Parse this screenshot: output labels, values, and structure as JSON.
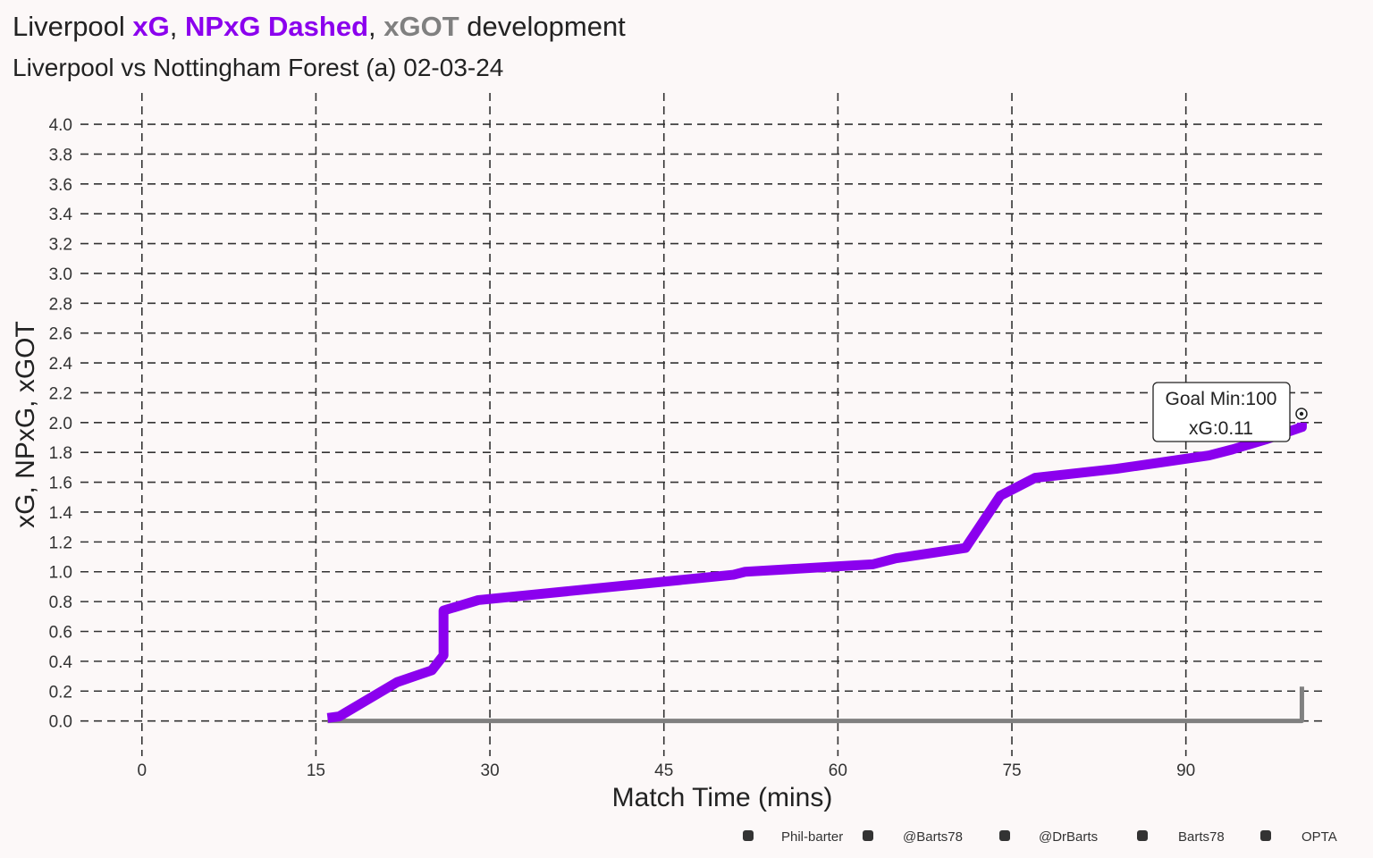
{
  "chart_data": {
    "type": "line",
    "title_parts": [
      {
        "text": "Liverpool ",
        "color": "#222222",
        "bold": false
      },
      {
        "text": "xG",
        "color": "#8b00ee",
        "bold": true
      },
      {
        "text": ", ",
        "color": "#222222",
        "bold": false
      },
      {
        "text": "NPxG Dashed",
        "color": "#8b00ee",
        "bold": true
      },
      {
        "text": ", ",
        "color": "#222222",
        "bold": false
      },
      {
        "text": "xGOT",
        "color": "#808080",
        "bold": true
      },
      {
        "text": " development",
        "color": "#222222",
        "bold": false
      }
    ],
    "subtitle": "Liverpool vs Nottingham Forest (a) 02-03-24",
    "x_label": "Match Time (mins)",
    "y_label": "xG, NPxG, xGOT",
    "xlim": [
      -5.3,
      102.2
    ],
    "xticks": [
      0,
      15,
      30,
      45,
      60,
      75,
      90
    ],
    "ylim": [
      -0.11,
      4.21
    ],
    "yticks": [
      {
        "value": 0,
        "label": "0.0"
      },
      0.2,
      0.4,
      0.6,
      0.8,
      {
        "value": 1,
        "label": "1.0"
      },
      1.2,
      1.4,
      1.6,
      1.8,
      {
        "value": 2,
        "label": "2.0"
      },
      2.2,
      2.4,
      2.6,
      2.8,
      {
        "value": 3,
        "label": "3.0"
      },
      3.2,
      3.4,
      3.6,
      3.8,
      {
        "value": 4,
        "label": "4.0"
      }
    ],
    "grid": true,
    "series": [
      {
        "name": "xGOT",
        "color": "#808080",
        "width": 5,
        "x": [
          16,
          100,
          100
        ],
        "values": [
          0,
          0,
          0.23
        ]
      },
      {
        "name": "xG",
        "color": "#8b00ee",
        "width": 11,
        "x": [
          16,
          17,
          22,
          25,
          26,
          26,
          29,
          51,
          52,
          63,
          65,
          71,
          74,
          77,
          84,
          92,
          94,
          97,
          100,
          100
        ],
        "values": [
          0.02,
          0.03,
          0.26,
          0.34,
          0.44,
          0.74,
          0.81,
          0.98,
          1.0,
          1.05,
          1.09,
          1.16,
          1.51,
          1.63,
          1.69,
          1.78,
          1.82,
          1.89,
          1.97,
          2.0
        ]
      }
    ],
    "annotation": [
      "Goal Min:100",
      "xG:0.11"
    ],
    "credits": [
      "Phil-barter",
      "@Barts78",
      "@DrBarts",
      "Barts78",
      "OPTA"
    ]
  }
}
